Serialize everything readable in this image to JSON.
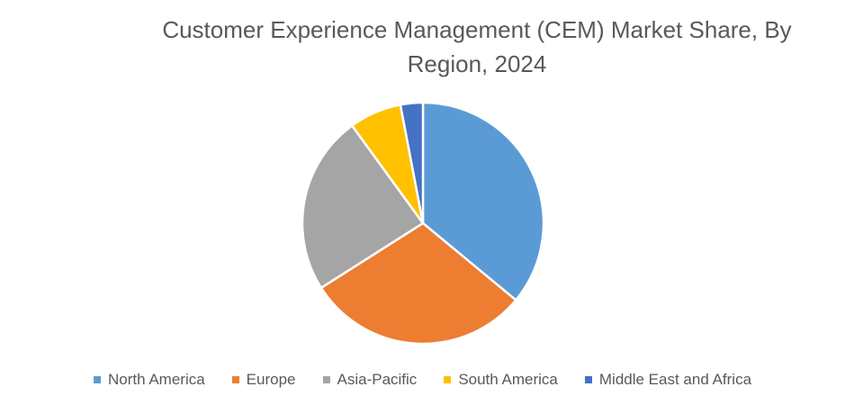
{
  "chart_data": {
    "type": "pie",
    "title": "Customer Experience Management (CEM) Market Share, By Region, 2024",
    "categories": [
      "North America",
      "Europe",
      "Asia-Pacific",
      "South America",
      "Middle East and Africa"
    ],
    "values": [
      36,
      30,
      24,
      7,
      3
    ],
    "colors": [
      "#5B9BD5",
      "#ED7D31",
      "#A5A5A5",
      "#FFC000",
      "#4472C4"
    ],
    "legend_position": "bottom",
    "start_angle": "top",
    "direction": "clockwise"
  }
}
